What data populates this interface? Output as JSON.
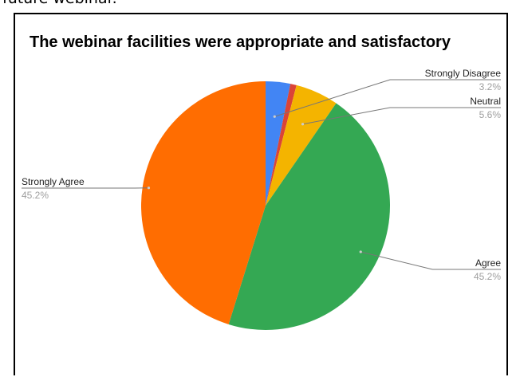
{
  "page": {
    "caption": "future webinar."
  },
  "chart_data": {
    "type": "pie",
    "title": "The webinar facilities were appropriate and satisfactory",
    "start_angle_deg": 0,
    "direction": "clockwise",
    "slices": [
      {
        "label": "Strongly Disagree",
        "value": 3.2,
        "value_label": "3.2%",
        "color": "#4285f4",
        "show_label": true
      },
      {
        "label": "",
        "value": 0.8,
        "value_label": "",
        "color": "#db4437",
        "show_label": false
      },
      {
        "label": "Neutral",
        "value": 5.6,
        "value_label": "5.6%",
        "color": "#f4b400",
        "show_label": true
      },
      {
        "label": "Agree",
        "value": 45.2,
        "value_label": "45.2%",
        "color": "#34a853",
        "show_label": true
      },
      {
        "label": "Strongly Agree",
        "value": 45.2,
        "value_label": "45.2%",
        "color": "#ff6d01",
        "show_label": true
      }
    ]
  }
}
